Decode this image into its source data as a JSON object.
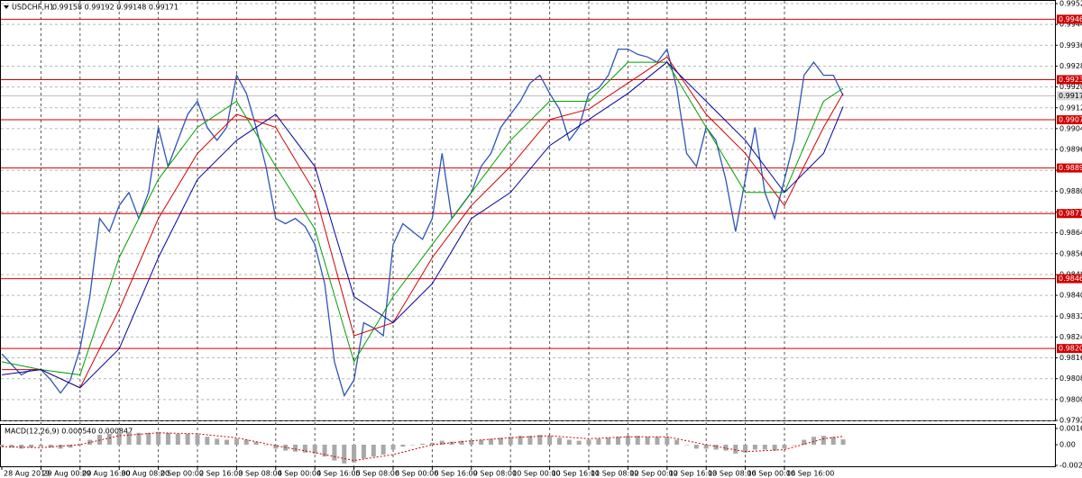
{
  "chart_data": [
    {
      "type": "line",
      "symbol": "USDCHF,H1",
      "ohlc_label": "0.99158 0.99192 0.99148 0.99171",
      "categories": [
        "28 Aug 2019",
        null,
        null,
        null,
        "29 Aug 00:00",
        null,
        null,
        null,
        "29 Aug 16:00",
        null,
        null,
        null,
        "30 Aug 08:00",
        null,
        null,
        null,
        "2 Sep 00:00",
        null,
        null,
        null,
        "2 Sep 16:00",
        null,
        null,
        null,
        "3 Sep 08:00",
        null,
        null,
        null,
        "4 Sep 00:00",
        null,
        null,
        null,
        "4 Sep 16:00",
        null,
        null,
        null,
        "5 Sep 08:00",
        null,
        null,
        null,
        "6 Sep 00:00",
        null,
        null,
        null,
        "6 Sep 16:00",
        null,
        null,
        null,
        "9 Sep 08:00",
        null,
        null,
        null,
        "10 Sep 00:00",
        null,
        null,
        null,
        "10 Sep 16:00",
        null,
        null,
        null,
        "11 Sep 08:00",
        null,
        null,
        null,
        "12 Sep 00:00",
        null,
        null,
        null,
        "12 Sep 16:00",
        null,
        null,
        null,
        "13 Sep 08:00",
        null,
        null,
        null,
        "16 Sep 00:00",
        null,
        null,
        null,
        "16 Sep 16:00",
        null,
        null,
        null,
        null,
        null,
        null
      ],
      "series": [
        {
          "color": "#2d55b5",
          "values": [
            0.9818,
            0.9814,
            0.981,
            0.9812,
            0.9812,
            0.9808,
            0.9803,
            0.9808,
            0.982,
            0.984,
            0.987,
            0.9865,
            0.9875,
            0.988,
            0.987,
            0.988,
            0.9905,
            0.989,
            0.99,
            0.991,
            0.9915,
            0.9905,
            0.99,
            0.9905,
            0.9925,
            0.9918,
            0.9905,
            0.989,
            0.987,
            0.9868,
            0.987,
            0.9867,
            0.986,
            0.9845,
            0.9815,
            0.9802,
            0.9808,
            0.983,
            0.9828,
            0.9825,
            0.986,
            0.9868,
            0.9865,
            0.9862,
            0.987,
            0.9895,
            0.987,
            0.9875,
            0.988,
            0.989,
            0.9895,
            0.9905,
            0.991,
            0.9915,
            0.9922,
            0.9925,
            0.9918,
            0.9912,
            0.99,
            0.9905,
            0.9918,
            0.992,
            0.9925,
            0.9935,
            0.9935,
            0.9933,
            0.9932,
            0.993,
            0.9935,
            0.992,
            0.9895,
            0.989,
            0.9905,
            0.99,
            0.9885,
            0.9865,
            0.9885,
            0.9905,
            0.988,
            0.987,
            0.9885,
            0.99,
            0.9925,
            0.993,
            0.9925,
            0.9925,
            0.99171
          ]
        },
        {
          "color": "#00a000",
          "x": [
            0,
            4,
            8,
            12,
            16,
            20,
            24,
            28,
            32,
            36,
            40,
            44,
            48,
            52,
            56,
            60,
            64,
            68,
            72,
            76,
            80,
            84,
            86
          ],
          "values": [
            0.9815,
            0.9812,
            0.981,
            0.9855,
            0.9885,
            0.9905,
            0.9915,
            0.989,
            0.9866,
            0.9815,
            0.984,
            0.986,
            0.988,
            0.99,
            0.9915,
            0.9915,
            0.993,
            0.993,
            0.9905,
            0.988,
            0.988,
            0.9915,
            0.992
          ]
        },
        {
          "color": "#d00000",
          "x": [
            0,
            4,
            8,
            12,
            16,
            20,
            24,
            28,
            32,
            36,
            40,
            44,
            48,
            52,
            56,
            60,
            64,
            68,
            72,
            76,
            80,
            84,
            86
          ],
          "values": [
            0.9812,
            0.9812,
            0.9805,
            0.9835,
            0.987,
            0.9895,
            0.991,
            0.9905,
            0.988,
            0.9825,
            0.983,
            0.9855,
            0.9875,
            0.989,
            0.9908,
            0.9912,
            0.9922,
            0.9932,
            0.991,
            0.9895,
            0.9875,
            0.9905,
            0.9918
          ]
        },
        {
          "color": "#0000a0",
          "x": [
            0,
            4,
            8,
            12,
            16,
            20,
            24,
            28,
            32,
            36,
            40,
            44,
            48,
            52,
            56,
            60,
            64,
            68,
            72,
            76,
            80,
            84,
            86
          ],
          "values": [
            0.981,
            0.9812,
            0.9805,
            0.982,
            0.9855,
            0.9885,
            0.99,
            0.991,
            0.989,
            0.984,
            0.983,
            0.9845,
            0.987,
            0.988,
            0.9898,
            0.9908,
            0.9918,
            0.993,
            0.9915,
            0.99,
            0.988,
            0.9895,
            0.9913
          ]
        }
      ],
      "ylim": [
        0.97925,
        0.99525
      ],
      "yticks": [
        0.99525,
        0.99445,
        0.99365,
        0.99285,
        0.99205,
        0.99125,
        0.99045,
        0.98965,
        0.98885,
        0.98805,
        0.98725,
        0.98645,
        0.98565,
        0.98485,
        0.98405,
        0.98325,
        0.98245,
        0.98165,
        0.98085,
        0.98005,
        0.97925
      ],
      "grid": true,
      "levels": [
        0.99465,
        0.99233,
        0.99079,
        0.98894,
        0.98719,
        0.98469,
        0.98201
      ],
      "level_color": "#d00000",
      "current_price": 0.99171
    },
    {
      "type": "bar",
      "legend": "MACD(12,26,9) 0.000540 0.000847",
      "color": "#a8a8a8",
      "values": [
        -0.0002,
        -0.0003,
        -0.0004,
        -0.0003,
        -0.0002,
        -0.0003,
        -0.0004,
        -0.0003,
        0.0001,
        0.0005,
        0.001,
        0.0011,
        0.0012,
        0.0013,
        0.0012,
        0.0012,
        0.0013,
        0.0012,
        0.0011,
        0.0011,
        0.001,
        0.0008,
        0.0006,
        0.0005,
        0.0006,
        0.0005,
        0.0003,
        0.0,
        -0.0004,
        -0.0006,
        -0.0007,
        -0.0008,
        -0.0009,
        -0.0012,
        -0.0016,
        -0.0019,
        -0.0018,
        -0.0014,
        -0.0012,
        -0.001,
        -0.0005,
        -0.0002,
        0.0,
        0.0001,
        0.0002,
        0.0004,
        0.0003,
        0.0004,
        0.0004,
        0.0005,
        0.0006,
        0.0007,
        0.0008,
        0.0009,
        0.0009,
        0.001,
        0.0009,
        0.0007,
        0.0005,
        0.0004,
        0.0005,
        0.0006,
        0.0007,
        0.0008,
        0.0009,
        0.0009,
        0.0008,
        0.0008,
        0.0008,
        0.0005,
        0.0,
        -0.0004,
        -0.0004,
        -0.0005,
        -0.0006,
        -0.0009,
        -0.0008,
        -0.0005,
        -0.0005,
        -0.0006,
        -0.0004,
        0.0,
        0.0005,
        0.0008,
        0.0009,
        0.0008,
        0.00054
      ],
      "signal": {
        "color": "#d00000",
        "x": [
          0,
          4,
          8,
          12,
          16,
          20,
          24,
          28,
          32,
          36,
          40,
          44,
          48,
          52,
          56,
          60,
          64,
          68,
          72,
          76,
          80,
          84,
          86
        ],
        "values": [
          -0.0002,
          -0.0003,
          0.0,
          0.0009,
          0.0012,
          0.0011,
          0.0007,
          -0.0001,
          -0.0008,
          -0.0016,
          -0.001,
          0.0,
          0.0004,
          0.0007,
          0.0009,
          0.0006,
          0.0008,
          0.0008,
          0.0,
          -0.0007,
          -0.0005,
          0.0006,
          0.000847
        ]
      },
      "ylim": [
        -0.002096,
        0.001642
      ],
      "yticks": [
        0.001642,
        {
          "value": 0,
          "label": "0.00"
        },
        -0.002096
      ]
    }
  ]
}
